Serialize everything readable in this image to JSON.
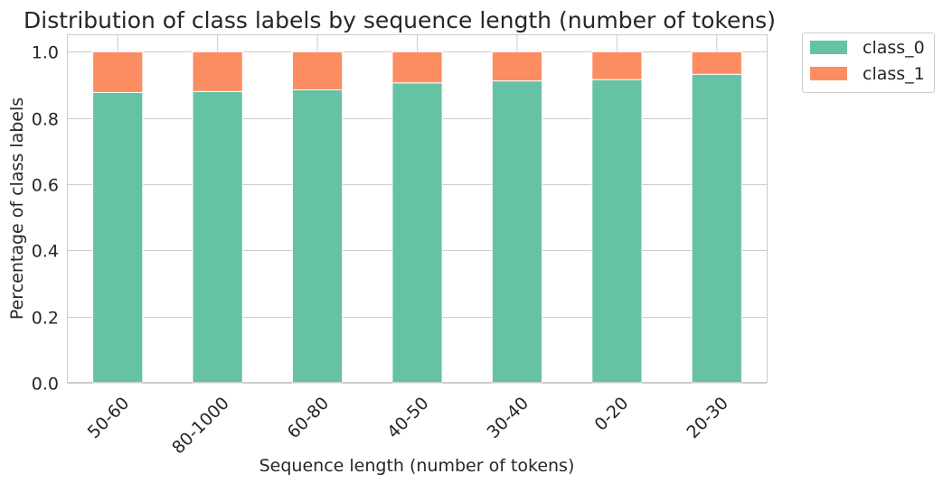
{
  "chart_data": {
    "type": "bar",
    "stacked": true,
    "title": "Distribution of class labels by sequence length (number of tokens)",
    "xlabel": "Sequence length (number of tokens)",
    "ylabel": "Percentage of class labels",
    "categories": [
      "50-60",
      "80-1000",
      "60-80",
      "40-50",
      "30-40",
      "0-20",
      "20-30"
    ],
    "series": [
      {
        "name": "class_0",
        "color": "#66c2a5",
        "values": [
          0.877,
          0.88,
          0.885,
          0.906,
          0.912,
          0.916,
          0.932
        ]
      },
      {
        "name": "class_1",
        "color": "#fc8d62",
        "values": [
          0.123,
          0.12,
          0.115,
          0.094,
          0.088,
          0.084,
          0.068
        ]
      }
    ],
    "ylim": [
      0,
      1.05
    ],
    "yticks": [
      0.0,
      0.2,
      0.4,
      0.6,
      0.8,
      1.0
    ],
    "ytick_labels": [
      "0.0",
      "0.2",
      "0.4",
      "0.6",
      "0.8",
      "1.0"
    ],
    "grid": true,
    "legend_position": "outside-top-right"
  }
}
